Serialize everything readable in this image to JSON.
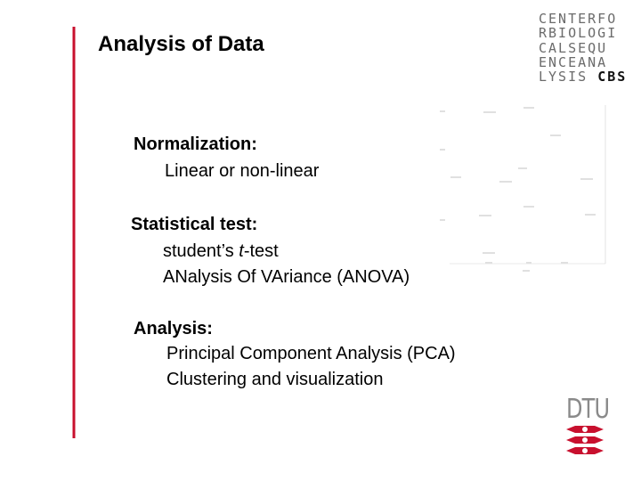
{
  "header": {
    "title": "Analysis of Data"
  },
  "logo": {
    "lines": [
      "CENTERFO",
      "RBIOLOGI",
      "CALSEQU",
      "ENCEANA"
    ],
    "last_line": [
      "LYSIS",
      "CBS"
    ]
  },
  "sections": [
    {
      "heading": "Normalization:",
      "items": [
        [
          "Linear or non-linear"
        ]
      ]
    },
    {
      "heading": "Statistical test:",
      "items": [
        [
          "student’s ",
          "t",
          "-test"
        ],
        [
          "ANalysis Of VAriance (ANOVA)"
        ]
      ]
    },
    {
      "heading": "Analysis:",
      "items": [
        [
          "Principal Component Analysis (PCA)"
        ],
        [
          "Clustering and visualization"
        ]
      ]
    }
  ],
  "footer_logo": {
    "text": "DTU"
  }
}
